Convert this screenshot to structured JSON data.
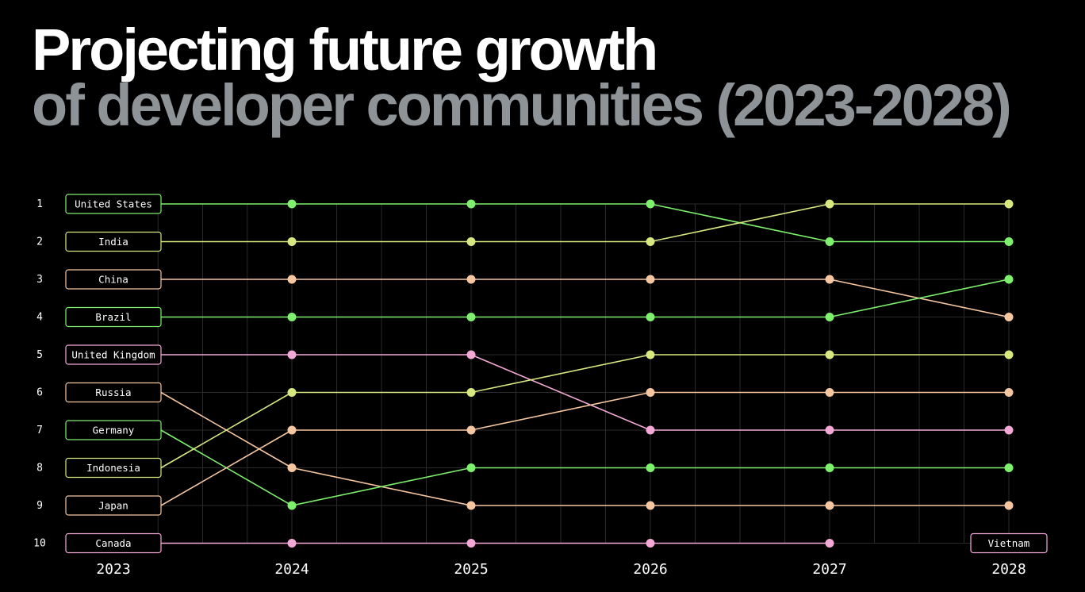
{
  "title": {
    "line1": "Projecting future growth",
    "line2": "of developer communities (2023-2028)"
  },
  "chart_data": {
    "type": "line",
    "subtype": "bump",
    "x": [
      "2023",
      "2024",
      "2025",
      "2026",
      "2027",
      "2028"
    ],
    "ranks": [
      "1",
      "2",
      "3",
      "4",
      "5",
      "6",
      "7",
      "8",
      "9",
      "10"
    ],
    "y_inverted": true,
    "ylim": [
      1,
      10
    ],
    "grid": true,
    "legend": "labels at line start",
    "series": [
      {
        "name": "United States",
        "color": "#7ef06e",
        "values": [
          1,
          1,
          1,
          1,
          2,
          2
        ]
      },
      {
        "name": "India",
        "color": "#d8e880",
        "values": [
          2,
          2,
          2,
          2,
          1,
          1
        ]
      },
      {
        "name": "China",
        "color": "#f5c6a0",
        "values": [
          3,
          3,
          3,
          3,
          3,
          4
        ]
      },
      {
        "name": "Brazil",
        "color": "#7ef06e",
        "values": [
          4,
          4,
          4,
          4,
          4,
          3
        ]
      },
      {
        "name": "United Kingdom",
        "color": "#f3a8d6",
        "values": [
          5,
          5,
          5,
          7,
          7,
          7
        ]
      },
      {
        "name": "Russia",
        "color": "#f5c6a0",
        "values": [
          6,
          8,
          9,
          9,
          9,
          9
        ]
      },
      {
        "name": "Germany",
        "color": "#7ef06e",
        "values": [
          7,
          9,
          8,
          8,
          8,
          8
        ]
      },
      {
        "name": "Indonesia",
        "color": "#d8e880",
        "values": [
          8,
          6,
          6,
          5,
          5,
          5
        ]
      },
      {
        "name": "Japan",
        "color": "#f5c6a0",
        "values": [
          9,
          7,
          7,
          6,
          6,
          6
        ]
      },
      {
        "name": "Canada",
        "color": "#f3a8d6",
        "values": [
          10,
          10,
          10,
          10,
          10,
          null
        ]
      },
      {
        "name": "Vietnam",
        "color": "#f3a8d6",
        "values": [
          null,
          null,
          null,
          null,
          null,
          10
        ]
      }
    ]
  }
}
